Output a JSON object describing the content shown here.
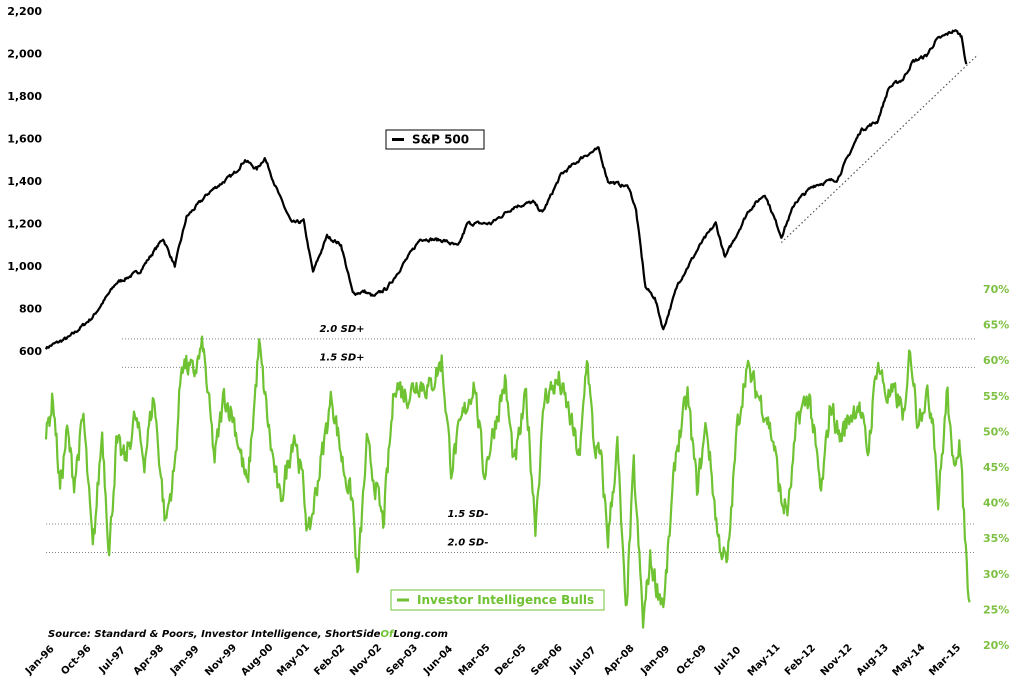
{
  "chart_data": {
    "type": "line",
    "x_axis": {
      "tick_labels": [
        "Jan-96",
        "Oct-96",
        "Jul-97",
        "Apr-98",
        "Jan-99",
        "Nov-99",
        "Aug-00",
        "May-01",
        "Feb-02",
        "Nov-02",
        "Sep-03",
        "Jun-04",
        "Mar-05",
        "Dec-05",
        "Sep-06",
        "Jul-07",
        "Apr-08",
        "Jan-09",
        "Oct-09",
        "Jul-10",
        "May-11",
        "Feb-12",
        "Nov-12",
        "Aug-13",
        "May-14",
        "Mar-15"
      ]
    },
    "left_axis": {
      "tick_labels": [
        "600",
        "800",
        "1,000",
        "1,200",
        "1,400",
        "1,600",
        "1,800",
        "2,000",
        "2,200"
      ],
      "ticks": [
        600,
        800,
        1000,
        1200,
        1400,
        1600,
        1800,
        2000,
        2200
      ],
      "range": [
        600,
        2200
      ]
    },
    "right_axis": {
      "tick_labels": [
        "20%",
        "25%",
        "30%",
        "35%",
        "40%",
        "45%",
        "50%",
        "55%",
        "60%",
        "65%",
        "70%"
      ],
      "ticks": [
        20,
        25,
        30,
        35,
        40,
        45,
        50,
        55,
        60,
        65,
        70
      ],
      "range": [
        20,
        70
      ]
    },
    "series": [
      {
        "name": "S&P 500",
        "axis": "left",
        "color": "#000000",
        "points": [
          [
            1996.0,
            615
          ],
          [
            1996.5,
            665
          ],
          [
            1997.0,
            760
          ],
          [
            1997.5,
            920
          ],
          [
            1998.0,
            975
          ],
          [
            1998.5,
            1130
          ],
          [
            1998.75,
            1000
          ],
          [
            1999.0,
            1230
          ],
          [
            1999.5,
            1350
          ],
          [
            2000.0,
            1430
          ],
          [
            2000.25,
            1500
          ],
          [
            2000.5,
            1455
          ],
          [
            2000.67,
            1510
          ],
          [
            2001.0,
            1320
          ],
          [
            2001.25,
            1200
          ],
          [
            2001.5,
            1210
          ],
          [
            2001.7,
            970
          ],
          [
            2002.0,
            1140
          ],
          [
            2002.3,
            1100
          ],
          [
            2002.55,
            870
          ],
          [
            2002.8,
            880
          ],
          [
            2003.0,
            855
          ],
          [
            2003.3,
            900
          ],
          [
            2003.6,
            1000
          ],
          [
            2004.0,
            1130
          ],
          [
            2004.5,
            1120
          ],
          [
            2004.8,
            1090
          ],
          [
            2005.0,
            1200
          ],
          [
            2005.5,
            1200
          ],
          [
            2006.0,
            1280
          ],
          [
            2006.4,
            1300
          ],
          [
            2006.6,
            1250
          ],
          [
            2007.0,
            1430
          ],
          [
            2007.5,
            1520
          ],
          [
            2007.8,
            1550
          ],
          [
            2008.0,
            1400
          ],
          [
            2008.45,
            1370
          ],
          [
            2008.6,
            1260
          ],
          [
            2008.8,
            900
          ],
          [
            2009.0,
            850
          ],
          [
            2009.18,
            700
          ],
          [
            2009.5,
            920
          ],
          [
            2010.0,
            1110
          ],
          [
            2010.3,
            1200
          ],
          [
            2010.5,
            1040
          ],
          [
            2011.0,
            1260
          ],
          [
            2011.35,
            1340
          ],
          [
            2011.7,
            1140
          ],
          [
            2012.0,
            1300
          ],
          [
            2012.4,
            1380
          ],
          [
            2012.9,
            1410
          ],
          [
            2013.4,
            1640
          ],
          [
            2013.75,
            1680
          ],
          [
            2014.0,
            1840
          ],
          [
            2014.3,
            1880
          ],
          [
            2014.5,
            1960
          ],
          [
            2014.8,
            1990
          ],
          [
            2015.0,
            2060
          ],
          [
            2015.4,
            2110
          ],
          [
            2015.55,
            2080
          ],
          [
            2015.65,
            1950
          ]
        ]
      },
      {
        "name": "Investor Intelligence Bulls",
        "axis": "right",
        "color": "#6fc232",
        "points": [
          [
            1996.0,
            49
          ],
          [
            1996.15,
            55
          ],
          [
            1996.3,
            42
          ],
          [
            1996.45,
            50
          ],
          [
            1996.6,
            43
          ],
          [
            1996.8,
            52
          ],
          [
            1997.0,
            33
          ],
          [
            1997.2,
            50
          ],
          [
            1997.35,
            33
          ],
          [
            1997.5,
            48
          ],
          [
            1997.7,
            46
          ],
          [
            1997.9,
            52
          ],
          [
            1998.1,
            46
          ],
          [
            1998.3,
            55
          ],
          [
            1998.55,
            37
          ],
          [
            1998.75,
            45
          ],
          [
            1998.9,
            60
          ],
          [
            1999.15,
            58
          ],
          [
            1999.35,
            62
          ],
          [
            1999.6,
            46
          ],
          [
            1999.8,
            55
          ],
          [
            2000.0,
            52
          ],
          [
            2000.3,
            42
          ],
          [
            2000.55,
            62
          ],
          [
            2000.8,
            48
          ],
          [
            2001.0,
            40
          ],
          [
            2001.3,
            50
          ],
          [
            2001.5,
            42
          ],
          [
            2001.6,
            35
          ],
          [
            2001.9,
            47
          ],
          [
            2002.1,
            55
          ],
          [
            2002.35,
            45
          ],
          [
            2002.55,
            40
          ],
          [
            2002.65,
            29
          ],
          [
            2002.85,
            48
          ],
          [
            2003.05,
            42
          ],
          [
            2003.2,
            37
          ],
          [
            2003.45,
            57
          ],
          [
            2003.7,
            55
          ],
          [
            2003.95,
            57
          ],
          [
            2004.2,
            56
          ],
          [
            2004.45,
            60
          ],
          [
            2004.65,
            45
          ],
          [
            2004.9,
            52
          ],
          [
            2005.15,
            57
          ],
          [
            2005.35,
            44
          ],
          [
            2005.55,
            50
          ],
          [
            2005.8,
            57
          ],
          [
            2006.0,
            45
          ],
          [
            2006.25,
            55
          ],
          [
            2006.45,
            37
          ],
          [
            2006.65,
            55
          ],
          [
            2006.95,
            57
          ],
          [
            2007.15,
            53
          ],
          [
            2007.4,
            46
          ],
          [
            2007.55,
            61
          ],
          [
            2007.7,
            48
          ],
          [
            2007.85,
            46
          ],
          [
            2008.0,
            35
          ],
          [
            2008.2,
            48
          ],
          [
            2008.38,
            24
          ],
          [
            2008.55,
            45
          ],
          [
            2008.75,
            23
          ],
          [
            2008.9,
            32
          ],
          [
            2009.05,
            28
          ],
          [
            2009.2,
            26
          ],
          [
            2009.45,
            47
          ],
          [
            2009.7,
            55
          ],
          [
            2009.9,
            42
          ],
          [
            2010.1,
            51
          ],
          [
            2010.35,
            35
          ],
          [
            2010.55,
            31
          ],
          [
            2010.75,
            50
          ],
          [
            2010.95,
            59
          ],
          [
            2011.15,
            56
          ],
          [
            2011.4,
            52
          ],
          [
            2011.55,
            48
          ],
          [
            2011.7,
            40
          ],
          [
            2011.85,
            39
          ],
          [
            2012.05,
            52
          ],
          [
            2012.3,
            55
          ],
          [
            2012.55,
            41
          ],
          [
            2012.75,
            54
          ],
          [
            2012.95,
            49
          ],
          [
            2013.15,
            52
          ],
          [
            2013.35,
            54
          ],
          [
            2013.55,
            47
          ],
          [
            2013.75,
            60
          ],
          [
            2013.95,
            55
          ],
          [
            2014.15,
            55
          ],
          [
            2014.35,
            52
          ],
          [
            2014.45,
            62
          ],
          [
            2014.6,
            52
          ],
          [
            2014.8,
            55
          ],
          [
            2014.95,
            52
          ],
          [
            2015.05,
            40
          ],
          [
            2015.25,
            56
          ],
          [
            2015.35,
            45
          ],
          [
            2015.5,
            49
          ],
          [
            2015.6,
            38
          ],
          [
            2015.68,
            29
          ],
          [
            2015.72,
            26
          ]
        ]
      }
    ],
    "trendline": {
      "points": [
        [
          2011.7,
          1110
        ],
        [
          2015.9,
          1995
        ]
      ],
      "style": "dotted"
    },
    "reference_lines": [
      {
        "label": "2.0 SD+",
        "value": 63.0
      },
      {
        "label": "1.5 SD+",
        "value": 59.0
      },
      {
        "label": "1.5 SD-",
        "value": 37.0
      },
      {
        "label": "2.0 SD-",
        "value": 33.0
      }
    ],
    "legends": [
      {
        "label": "S&P 500",
        "color": "#000000",
        "border": "#000000"
      },
      {
        "label": "Investor Intelligence Bulls",
        "color": "#6fc232",
        "border": "#6fc232"
      }
    ],
    "source_parts": [
      {
        "text": "Source: Standard & Poors, Investor Intelligence, ShortSide",
        "color": "#000000"
      },
      {
        "text": "Of",
        "color": "#6fc232"
      },
      {
        "text": "Long",
        "color": "#000000"
      },
      {
        "text": ".com",
        "color": "#000000"
      }
    ],
    "grid": false
  }
}
